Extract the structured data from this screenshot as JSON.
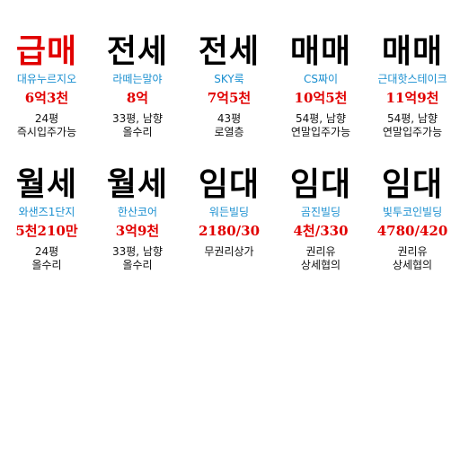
{
  "listings": [
    {
      "type": "급매",
      "name": "대유누르지오",
      "price": "6억3천",
      "detail": "24평\n즉시입주가능"
    },
    {
      "type": "전세",
      "name": "라떼는말야",
      "price": "8억",
      "detail": "33평, 남향\n올수리"
    },
    {
      "type": "전세",
      "name": "SKY룩",
      "price": "7억5천",
      "detail": "43평\n로열층"
    },
    {
      "type": "매매",
      "name": "CS짜이",
      "price": "10억5천",
      "detail": "54평, 남향\n연말입주가능"
    },
    {
      "type": "매매",
      "name": "근대핫스테이크",
      "price": "11억9천",
      "detail": "54평, 남향\n연말입주가능"
    },
    {
      "type": "월세",
      "name": "와샌즈1단지",
      "price": "5천210만",
      "detail": "24평\n올수리"
    },
    {
      "type": "월세",
      "name": "한산코어",
      "price": "3억9천",
      "detail": "33평, 남향\n올수리"
    },
    {
      "type": "임대",
      "name": "워든빌딩",
      "price": "2180/30",
      "detail": "무권리상가"
    },
    {
      "type": "임대",
      "name": "곰진빌딩",
      "price": "4천/330",
      "detail": "권리유\n상세협의"
    },
    {
      "type": "임대",
      "name": "빛투코인빌딩",
      "price": "4780/420",
      "detail": "권리유\n상세협의"
    }
  ],
  "colors": {
    "urgent": "#e10000",
    "name": "#1a8fd0",
    "price": "#e10000",
    "text": "#000000"
  }
}
